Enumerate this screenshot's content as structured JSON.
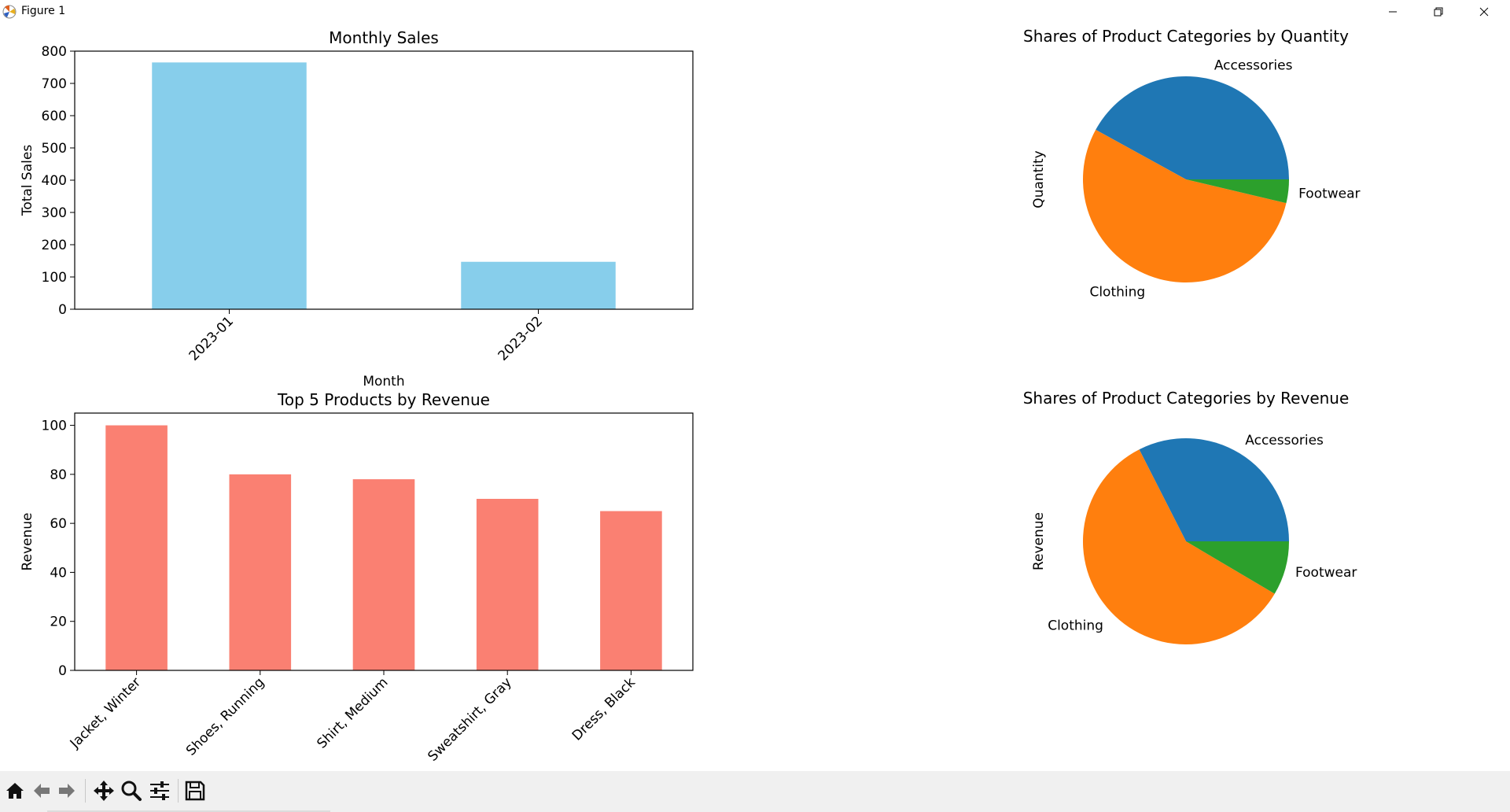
{
  "window": {
    "title": "Figure 1"
  },
  "toolbar": {
    "buttons": [
      "home-icon",
      "back-arrow-icon",
      "forward-arrow-icon",
      "pan-icon",
      "zoom-icon",
      "configure-subplots-icon",
      "save-icon"
    ]
  },
  "colors": {
    "sky": "#87ceeb",
    "salmon": "#fa8072",
    "blue": "#1f77b4",
    "orange": "#ff7f0e",
    "green": "#2ca02c"
  },
  "chart_data": [
    {
      "type": "bar",
      "title": "Monthly Sales",
      "xlabel": "Month",
      "ylabel": "Total Sales",
      "categories": [
        "2023-01",
        "2023-02"
      ],
      "values": [
        765,
        147
      ],
      "ylim": [
        0,
        800
      ],
      "yticks": [
        "0",
        "100",
        "200",
        "300",
        "400",
        "500",
        "600",
        "700",
        "800"
      ],
      "color": "#87ceeb",
      "grid": false
    },
    {
      "type": "pie",
      "title": "Shares of Product Categories by Quantity",
      "ylabel": "Quantity",
      "labels": [
        "Accessories",
        "Clothing",
        "Footwear"
      ],
      "values": [
        42,
        54.3,
        3.7
      ],
      "colors": [
        "#1f77b4",
        "#ff7f0e",
        "#2ca02c"
      ]
    },
    {
      "type": "bar",
      "title": "Top 5 Products by Revenue",
      "xlabel": "",
      "ylabel": "Revenue",
      "categories": [
        "Jacket, Winter",
        "Shoes, Running",
        "Shirt, Medium",
        "Sweatshirt, Gray",
        "Dress, Black"
      ],
      "values": [
        100,
        80,
        78,
        70,
        65
      ],
      "ylim": [
        0,
        105
      ],
      "yticks": [
        "0",
        "20",
        "40",
        "60",
        "80",
        "100"
      ],
      "color": "#fa8072",
      "grid": false
    },
    {
      "type": "pie",
      "title": "Shares of Product Categories by Revenue",
      "ylabel": "Revenue",
      "labels": [
        "Accessories",
        "Clothing",
        "Footwear"
      ],
      "values": [
        32.5,
        59,
        8.5
      ],
      "colors": [
        "#1f77b4",
        "#ff7f0e",
        "#2ca02c"
      ]
    }
  ]
}
